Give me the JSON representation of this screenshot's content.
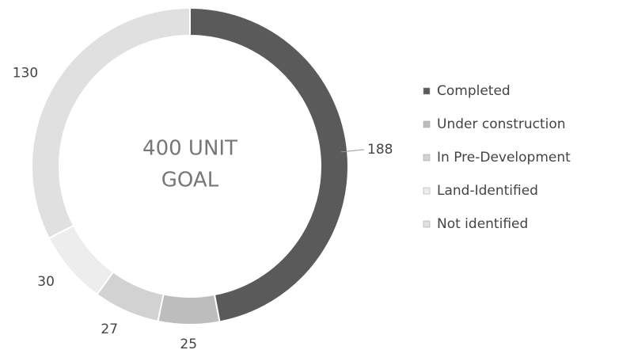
{
  "chart_data": {
    "type": "donut",
    "center_text": [
      "400 UNIT",
      "GOAL"
    ],
    "series": [
      {
        "name": "Completed",
        "color": "#5a5a5a",
        "values": [
          188
        ]
      },
      {
        "name": "Under construction",
        "color": "#bdbdbd",
        "values": [
          25
        ]
      },
      {
        "name": "In Pre-Development",
        "color": "#d2d2d2",
        "values": [
          27
        ]
      },
      {
        "name": "Land-Identified",
        "color": "#ededed",
        "values": [
          30
        ]
      },
      {
        "name": "Not identified",
        "color": "#e0e0e0",
        "values": [
          130
        ]
      }
    ],
    "legend": "right"
  }
}
